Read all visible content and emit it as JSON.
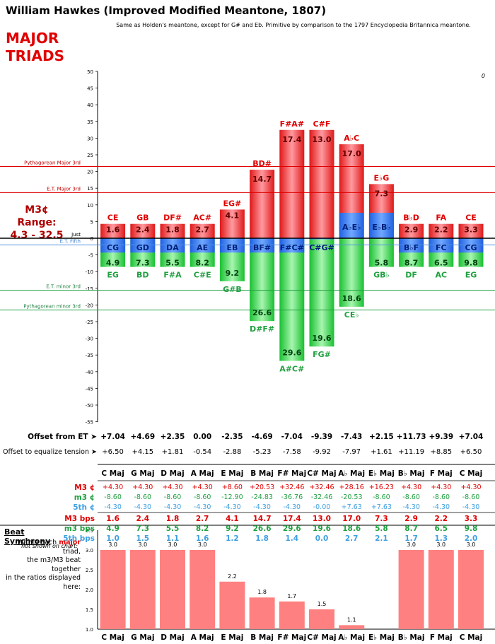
{
  "title": "William Hawkes (Improved Modified Meantone, 1807)",
  "subtitle": "Same as Holden's meantone, except for G# and Eb. Primitive by comparison to the 1797 Encyclopedia Britannica meantone.",
  "heading": [
    "MAJOR",
    "TRIADS"
  ],
  "range_label": [
    "M3¢ Range:",
    "4.3 - 32.5"
  ],
  "corner_value": "0",
  "ref_lines": {
    "pyth_major": "Pythagorean Major 3rd",
    "et_major": "E.T. Major 3rd",
    "just": "Just",
    "et_fifth": "E.T. Fifth",
    "et_minor": "E.T. minor 3rd",
    "pyth_minor": "Pythagorean minor 3rd"
  },
  "colors": {
    "red": "#e02020",
    "green": "#20c040",
    "blue": "#3070e0",
    "axis_red": "#e00000",
    "axis_green": "#20a040",
    "axis_blue": "#60a0e0"
  },
  "chart_data": {
    "type": "bar",
    "ylim": [
      -55,
      50
    ],
    "yticks": [
      50,
      45,
      40,
      35,
      30,
      25,
      20,
      15,
      10,
      5,
      0,
      -5,
      -10,
      -15,
      -20,
      -25,
      -30,
      -35,
      -40,
      -45,
      -50,
      -55
    ],
    "reference_values": {
      "pyth_major": 21.5,
      "et_major": 13.7,
      "just": 0,
      "et_fifth": -2,
      "et_minor": -15.6,
      "pyth_minor": -21.5
    },
    "major_labels": [
      "CE",
      "GB",
      "DF#",
      "AC#",
      "EG#",
      "BD#",
      "F#A#",
      "C#F",
      "A♭C",
      "E♭G",
      "B♭D",
      "FA",
      "CE"
    ],
    "minor_labels": [
      "EG",
      "BD",
      "F#A",
      "C#E",
      "G#B",
      "D#F#",
      "A#C#",
      "FG#",
      "CE♭",
      "GB♭",
      "DF",
      "AC",
      "EG"
    ],
    "fifth_labels": [
      "CG",
      "GD",
      "DA",
      "AE",
      "EB",
      "BF#",
      "F#C#",
      "C#G#",
      "A♭E♭",
      "E♭B♭",
      "B♭F",
      "FC",
      "CG"
    ],
    "series": [
      {
        "name": "M3 bps",
        "values": [
          1.6,
          2.4,
          1.8,
          2.7,
          4.1,
          14.7,
          17.4,
          13.0,
          17.0,
          7.3,
          2.9,
          2.2,
          3.3
        ]
      },
      {
        "name": "m3 bps",
        "values": [
          4.9,
          7.3,
          5.5,
          8.2,
          9.2,
          26.6,
          29.6,
          19.6,
          18.6,
          5.8,
          8.7,
          6.5,
          9.8
        ]
      },
      {
        "name": "M3 ¢",
        "values": [
          4.3,
          4.3,
          4.3,
          4.3,
          8.6,
          20.53,
          32.46,
          32.46,
          28.16,
          16.23,
          4.3,
          4.3,
          4.3
        ]
      },
      {
        "name": "m3 ¢",
        "values": [
          -8.6,
          -8.6,
          -8.6,
          -8.6,
          -12.9,
          -24.83,
          -36.76,
          -32.46,
          -20.53,
          -8.6,
          -8.6,
          -8.6,
          -8.6
        ]
      },
      {
        "name": "5th ¢",
        "values": [
          -4.3,
          -4.3,
          -4.3,
          -4.3,
          -4.3,
          -4.3,
          -4.3,
          -0.0,
          7.63,
          7.63,
          -4.3,
          -4.3,
          -4.3
        ]
      }
    ]
  },
  "offsets": {
    "row1_label": "Offset from ET ➤",
    "row1": [
      "+7.04",
      "+4.69",
      "+2.35",
      "0.00",
      "-2.35",
      "-4.69",
      "-7.04",
      "-9.39",
      "-7.43",
      "+2.15",
      "+11.73",
      "+9.39",
      "+7.04"
    ],
    "row2_label": "Offset to equalize tension ➤",
    "row2": [
      "+6.50",
      "+4.15",
      "+1.81",
      "-0.54",
      "-2.88",
      "-5.23",
      "-7.58",
      "-9.92",
      "-7.97",
      "+1.61",
      "+11.19",
      "+8.85",
      "+6.50"
    ]
  },
  "table": {
    "headers": [
      "C Maj",
      "G Maj",
      "D Maj",
      "A Maj",
      "E Maj",
      "B Maj",
      "F# Maj",
      "C# Maj",
      "A♭ Maj",
      "E♭ Maj",
      "B♭ Maj",
      "F Maj",
      "C Maj"
    ],
    "rows": [
      {
        "label": "M3 ¢",
        "color": "#e00000",
        "cells": [
          "+4.30",
          "+4.30",
          "+4.30",
          "+4.30",
          "+8.60",
          "+20.53",
          "+32.46",
          "+32.46",
          "+28.16",
          "+16.23",
          "+4.30",
          "+4.30",
          "+4.30"
        ]
      },
      {
        "label": "m3 ¢",
        "color": "#20a040",
        "cells": [
          "-8.60",
          "-8.60",
          "-8.60",
          "-8.60",
          "-12.90",
          "-24.83",
          "-36.76",
          "-32.46",
          "-20.53",
          "-8.60",
          "-8.60",
          "-8.60",
          "-8.60"
        ]
      },
      {
        "label": "5th ¢",
        "color": "#40a0e0",
        "cells": [
          "-4.30",
          "-4.30",
          "-4.30",
          "-4.30",
          "-4.30",
          "-4.30",
          "-4.30",
          "-0.00",
          "+7.63",
          "+7.63",
          "-4.30",
          "-4.30",
          "-4.30"
        ]
      },
      {
        "label": "M3 bps",
        "color": "#e00000",
        "cells": [
          "1.6",
          "2.4",
          "1.8",
          "2.7",
          "4.1",
          "14.7",
          "17.4",
          "13.0",
          "17.0",
          "7.3",
          "2.9",
          "2.2",
          "3.3"
        ]
      },
      {
        "label": "m3 bps",
        "color": "#20a040",
        "cells": [
          "4.9",
          "7.3",
          "5.5",
          "8.2",
          "9.2",
          "26.6",
          "29.6",
          "19.6",
          "18.6",
          "5.8",
          "8.7",
          "6.5",
          "9.8"
        ]
      },
      {
        "label": "5th bps",
        "color": "#40a0e0",
        "cells": [
          "1.0",
          "1.5",
          "1.1",
          "1.6",
          "1.2",
          "1.8",
          "1.4",
          "0.0",
          "2.7",
          "2.1",
          "1.7",
          "1.3",
          "2.0"
        ]
      }
    ],
    "note": "not shown on chart:"
  },
  "beat": {
    "title": "Beat Synchrony",
    "desc": [
      "Within each",
      "major",
      "triad,",
      "the m3/M3 beat together",
      "in the ratios displayed",
      "here:"
    ],
    "ylim": [
      1.0,
      3.5
    ],
    "yticks": [
      "3.5",
      "3.0",
      "2.5",
      "2.0",
      "1.5",
      "1.0"
    ],
    "values": [
      3.0,
      3.0,
      3.0,
      3.0,
      2.2,
      1.8,
      1.7,
      1.5,
      1.1,
      null,
      3.0,
      3.0,
      3.0
    ],
    "value_labels": [
      "3.0",
      "3.0",
      "3.0",
      "3.0",
      "2.2",
      "1.8",
      "1.7",
      "1.5",
      "1.1",
      "",
      "3.0",
      "3.0",
      "3.0"
    ]
  }
}
